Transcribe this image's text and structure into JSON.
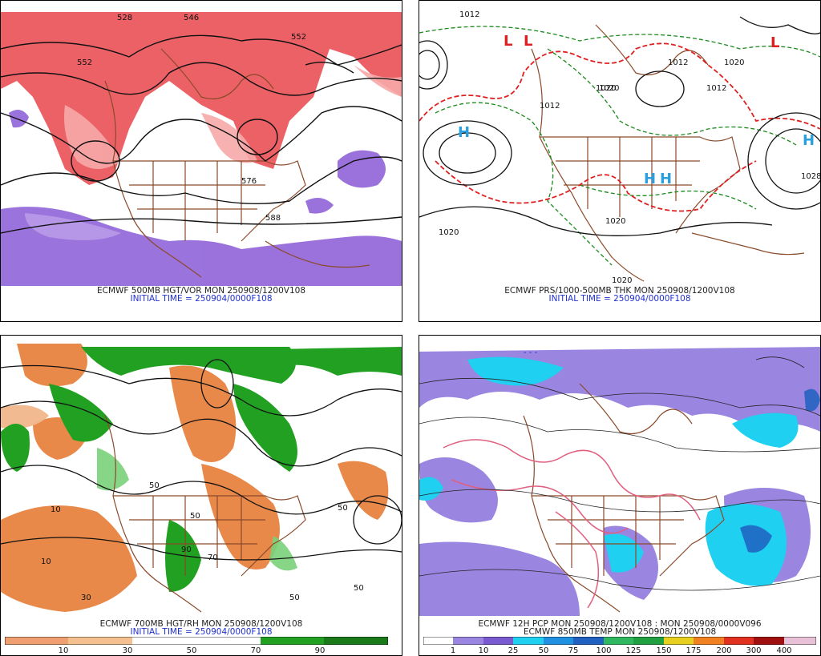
{
  "panels": {
    "p1": {
      "caption": "ECMWF 500MB HGT/VOR MON 250908/1200V108",
      "initial": "INITIAL TIME = 250904/0000F108",
      "contour_labels": [
        "528",
        "546",
        "552",
        "552",
        "576",
        "588"
      ]
    },
    "p2": {
      "caption": "ECMWF PRS/1000-500MB THK MON 250908/1200V108",
      "initial": "INITIAL TIME = 250904/0000F108",
      "contour_labels": [
        "1012",
        "1020",
        "1012",
        "1020",
        "1020",
        "1020",
        "1012",
        "1012",
        "1020",
        "1028",
        "1020"
      ],
      "centers": [
        "H",
        "H",
        "H",
        "H",
        "L",
        "L",
        "L"
      ]
    },
    "p3": {
      "caption": "ECMWF 700MB HGT/RH MON 250908/1200V108",
      "initial": "INITIAL TIME = 250904/0000F108",
      "contour_labels": [
        "10",
        "10",
        "30",
        "50",
        "50",
        "50",
        "90",
        "70",
        "50",
        "50"
      ],
      "colorbar": [
        "10",
        "30",
        "50",
        "70",
        "90"
      ]
    },
    "p4": {
      "caption": "ECMWF 12H PCP MON 250908/1200V108 : MON 250908/0000V096",
      "caption2": "ECMWF 850MB TEMP MON 250908/1200V108",
      "colorbar": [
        "1",
        "10",
        "25",
        "50",
        "75",
        "100",
        "125",
        "150",
        "175",
        "200",
        "300",
        "400"
      ]
    }
  },
  "colors": {
    "vort_red": "#e8454b",
    "vort_purple": "#8a5ad6",
    "land_brown": "#8a4a2a",
    "thick_green": "#1a8a1a",
    "thick_red": "#e02020",
    "rh_orange": "#e8894a",
    "rh_green": "#22a022",
    "pcp_purple": "#9a85e0",
    "pcp_cyan": "#20d0f0",
    "temp_pink": "#e06080"
  }
}
